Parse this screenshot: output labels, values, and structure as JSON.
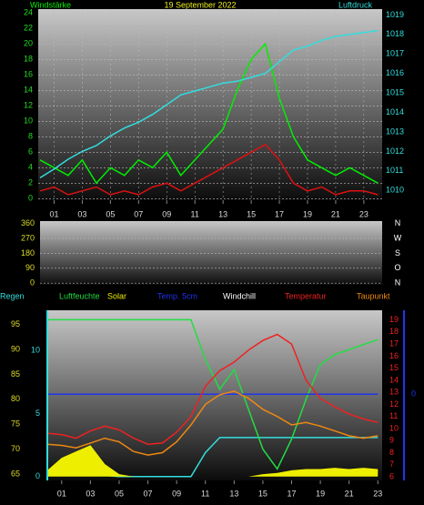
{
  "chart_data": [
    {
      "type": "line",
      "title": "19 September 2022",
      "x": [
        0,
        1,
        2,
        3,
        4,
        5,
        6,
        7,
        8,
        9,
        10,
        11,
        12,
        13,
        14,
        15,
        16,
        17,
        18,
        19,
        20,
        21,
        22,
        23,
        24
      ],
      "xlim": [
        0,
        24.3
      ],
      "xticks": [
        {
          "value": 1,
          "label": "01"
        },
        {
          "value": 3,
          "label": "03"
        },
        {
          "value": 5,
          "label": "05"
        },
        {
          "value": 7,
          "label": "07"
        },
        {
          "value": 9,
          "label": "09"
        },
        {
          "value": 11,
          "label": "11"
        },
        {
          "value": 13,
          "label": "13"
        },
        {
          "value": 15,
          "label": "15"
        },
        {
          "value": 17,
          "label": "17"
        },
        {
          "value": 19,
          "label": "19"
        },
        {
          "value": 21,
          "label": "21"
        },
        {
          "value": 23,
          "label": "23"
        }
      ],
      "ylim": [
        -0.2,
        24.5
      ],
      "yticks": [
        0,
        2,
        4,
        6,
        8,
        10,
        12,
        14,
        16,
        18,
        20,
        22,
        24
      ],
      "ytick_color": "#22dd22",
      "y2lim": [
        1009.5,
        1019.3
      ],
      "y2ticks": [
        1010,
        1011,
        1012,
        1013,
        1014,
        1015,
        1016,
        1017,
        1018,
        1019
      ],
      "y2tick_color": "#33dddd",
      "grid": true,
      "series": [
        {
          "name": "Windstärke",
          "color": "#00ee00",
          "values": [
            5,
            4,
            3,
            5,
            2,
            4,
            3,
            5,
            4,
            6,
            3,
            5,
            7,
            9,
            14,
            18,
            20,
            13,
            8,
            5,
            4,
            3,
            4,
            3,
            2
          ]
        },
        {
          "color": "#dd1111",
          "values": [
            1,
            1.5,
            0.5,
            1,
            1.5,
            0.5,
            1,
            0.5,
            1.5,
            2,
            1,
            2,
            3,
            4,
            5,
            6,
            7,
            5,
            2,
            1,
            1.5,
            0.5,
            1,
            1,
            0.5
          ]
        },
        {
          "name": "Luftdruck",
          "color": "#33dddd",
          "axis": "y2",
          "values": [
            1010.65,
            1011.1,
            1011.6,
            1012.0,
            1012.3,
            1012.8,
            1013.2,
            1013.5,
            1013.9,
            1014.4,
            1014.9,
            1015.1,
            1015.3,
            1015.5,
            1015.6,
            1015.8,
            1016.0,
            1016.6,
            1017.2,
            1017.4,
            1017.7,
            1017.9,
            1018.0,
            1018.1,
            1018.2
          ]
        }
      ]
    },
    {
      "type": "line",
      "xlim": [
        0,
        24.3
      ],
      "ylim": [
        -10,
        375
      ],
      "yticks": [
        0,
        90,
        180,
        270,
        360
      ],
      "ytick_color": "#dddd22",
      "y2lim": [
        -10,
        375
      ],
      "y2ticks": [
        {
          "value": 0,
          "label": "N"
        },
        {
          "value": 90,
          "label": "O"
        },
        {
          "value": 180,
          "label": "S"
        },
        {
          "value": 270,
          "label": "W"
        },
        {
          "value": 360,
          "label": "N"
        }
      ],
      "y2tick_color": "#ffffff",
      "grid": true,
      "series": []
    },
    {
      "type": "line",
      "x": [
        0,
        1,
        2,
        3,
        4,
        5,
        6,
        7,
        8,
        9,
        10,
        11,
        12,
        13,
        14,
        15,
        16,
        17,
        18,
        19,
        20,
        21,
        22,
        23
      ],
      "xlim": [
        0,
        23.3
      ],
      "xticks": [
        {
          "value": 1,
          "label": "01"
        },
        {
          "value": 3,
          "label": "03"
        },
        {
          "value": 5,
          "label": "05"
        },
        {
          "value": 7,
          "label": "07"
        },
        {
          "value": 9,
          "label": "09"
        },
        {
          "value": 11,
          "label": "11"
        },
        {
          "value": 13,
          "label": "13"
        },
        {
          "value": 15,
          "label": "15"
        },
        {
          "value": 17,
          "label": "17"
        },
        {
          "value": 19,
          "label": "19"
        },
        {
          "value": 21,
          "label": "21"
        },
        {
          "value": 23,
          "label": "23"
        }
      ],
      "ylim": [
        63.7,
        97.9
      ],
      "yticks": [
        65,
        70,
        75,
        80,
        85,
        90,
        95
      ],
      "ytick_color": "#dddd22",
      "y2lim": [
        5.7,
        19.8
      ],
      "y2ticks": [
        6,
        7,
        8,
        9,
        10,
        11,
        12,
        13,
        14,
        15,
        16,
        17,
        18,
        19
      ],
      "y2tick_color": "#ee2222",
      "y3lim": [
        -0.3,
        13.2
      ],
      "y3ticks": [
        0,
        5,
        10
      ],
      "y3tick_color": "#33dddd",
      "y4lim": [
        -7.1,
        6.9
      ],
      "y4ticks": [
        0
      ],
      "y4tick_color": "#2233ee",
      "grid": false,
      "series": [
        {
          "name": "Regen",
          "color": "#33dddd",
          "axis": "y3",
          "values": [
            0.4,
            0.35,
            0.3,
            0.2,
            0.1,
            0,
            0,
            0,
            0,
            0,
            0,
            1.9,
            3.1,
            3.1,
            3.1,
            3.1,
            3.1,
            3.1,
            3.1,
            3.1,
            3.1,
            3.1,
            3.1,
            3.1
          ]
        },
        {
          "name": "Luftfeuchte",
          "color": "#22dd44",
          "values": [
            96,
            96,
            96,
            96,
            96,
            96,
            96,
            96,
            96,
            96,
            96,
            88,
            82,
            86,
            78,
            70,
            66,
            72,
            80,
            87,
            89,
            90,
            91,
            92
          ]
        },
        {
          "name": "Solar",
          "color": "#eeee00",
          "axis": "y3",
          "area": true,
          "values": [
            0.5,
            1.5,
            2,
            2.5,
            1,
            0.2,
            0,
            0,
            0,
            0,
            0,
            0,
            0,
            0,
            0,
            0.2,
            0.3,
            0.5,
            0.6,
            0.6,
            0.7,
            0.6,
            0.7,
            0.6
          ]
        },
        {
          "name": "Temp. 5cm",
          "color": "#2233ee",
          "axis": "y4",
          "values": [
            0,
            0,
            0,
            0,
            0,
            0,
            0,
            0,
            0,
            0,
            0,
            0,
            0,
            0,
            0,
            0,
            0,
            0,
            0,
            0,
            0,
            0,
            0,
            0
          ]
        },
        {
          "name": "Windchill",
          "color": "#ffffff"
        },
        {
          "name": "Temperatur",
          "color": "#ee2222",
          "axis": "y2",
          "values": [
            9.6,
            9.5,
            9.2,
            9.8,
            10.2,
            9.9,
            9.2,
            8.7,
            8.8,
            9.7,
            11,
            13.5,
            14.8,
            15.5,
            16.5,
            17.3,
            17.8,
            17,
            14,
            12.5,
            11.8,
            11.2,
            10.8,
            10.5
          ]
        },
        {
          "name": "Taupunkt",
          "color": "#ee8811",
          "axis": "y2",
          "values": [
            8.7,
            8.6,
            8.4,
            8.8,
            9.2,
            8.9,
            8.1,
            7.8,
            8,
            8.9,
            10.3,
            12,
            12.8,
            13.1,
            12.5,
            11.6,
            11,
            10.3,
            10.5,
            10.2,
            9.8,
            9.4,
            9.2,
            9.4
          ]
        }
      ]
    }
  ]
}
